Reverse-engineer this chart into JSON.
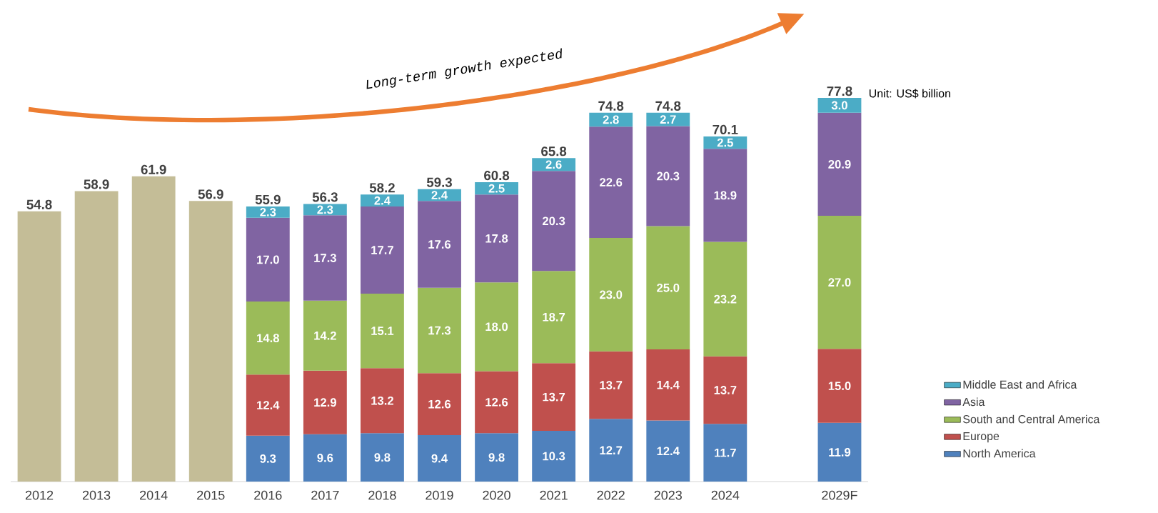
{
  "chart_data": {
    "type": "bar",
    "stacked": true,
    "legend": "bottom right",
    "categories": [
      "2012",
      "2013",
      "2014",
      "2015",
      "2016",
      "2017",
      "2018",
      "2019",
      "2020",
      "2021",
      "2022",
      "2023",
      "2024",
      null,
      "2029F"
    ],
    "series": [
      {
        "color": "#c4bd97",
        "values": [
          54.8,
          58.9,
          61.9,
          56.9,
          null,
          null,
          null,
          null,
          null,
          null,
          null,
          null,
          null,
          null,
          null
        ],
        "value_labels": [
          null,
          null,
          null,
          null,
          null,
          null,
          null,
          null,
          null,
          null,
          null,
          null,
          null,
          null,
          null
        ]
      },
      {
        "name": "North America",
        "color": "#4f81bd",
        "values": [
          null,
          null,
          null,
          null,
          9.3,
          9.6,
          9.8,
          9.4,
          9.8,
          10.3,
          12.7,
          12.4,
          11.7,
          null,
          11.9
        ],
        "value_labels": [
          null,
          null,
          null,
          null,
          "9.3",
          "9.6",
          "9.8",
          "9.4",
          "9.8",
          "10.3",
          "12.7",
          "12.4",
          "11.7",
          null,
          "11.9"
        ]
      },
      {
        "name": "Europe",
        "color": "#c0504d",
        "values": [
          null,
          null,
          null,
          null,
          12.4,
          12.9,
          13.2,
          12.6,
          12.6,
          13.7,
          13.7,
          14.4,
          13.7,
          null,
          15.0
        ],
        "value_labels": [
          null,
          null,
          null,
          null,
          "12.4",
          "12.9",
          "13.2",
          "12.6",
          "12.6",
          "13.7",
          "13.7",
          "14.4",
          "13.7",
          null,
          "15.0"
        ]
      },
      {
        "name": "South and Central America",
        "color": "#9bbb59",
        "values": [
          null,
          null,
          null,
          null,
          14.8,
          14.2,
          15.1,
          17.3,
          18.0,
          18.7,
          23.0,
          25.0,
          23.2,
          null,
          27.0
        ],
        "value_labels": [
          null,
          null,
          null,
          null,
          "14.8",
          "14.2",
          "15.1",
          "17.3",
          "18.0",
          "18.7",
          "23.0",
          "25.0",
          "23.2",
          null,
          "27.0"
        ]
      },
      {
        "name": "Asia",
        "color": "#8064a2",
        "values": [
          null,
          null,
          null,
          null,
          17.0,
          17.3,
          17.7,
          17.6,
          17.8,
          20.3,
          22.6,
          20.3,
          18.9,
          null,
          20.9
        ],
        "value_labels": [
          null,
          null,
          null,
          null,
          "17.0",
          "17.3",
          "17.7",
          "17.6",
          "17.8",
          "20.3",
          "22.6",
          "20.3",
          "18.9",
          null,
          "20.9"
        ]
      },
      {
        "name": "Middle East and Africa",
        "color": "#4bacc6",
        "values": [
          null,
          null,
          null,
          null,
          2.3,
          2.3,
          2.4,
          2.4,
          2.5,
          2.6,
          2.8,
          2.7,
          2.5,
          null,
          3.0
        ],
        "value_labels": [
          null,
          null,
          null,
          null,
          "2.3",
          "2.3",
          "2.4",
          "2.4",
          "2.5",
          "2.6",
          "2.8",
          "2.7",
          "2.5",
          null,
          "3.0"
        ]
      }
    ],
    "totals": [
      "54.8",
      "58.9",
      "61.9",
      "56.9",
      "55.9",
      "56.3",
      "58.2",
      "59.3",
      "60.8",
      "65.8",
      "74.8",
      "74.8",
      "70.1",
      null,
      "77.8"
    ],
    "annotations": [
      "Long-term growth expected",
      "Unit: US$ billion"
    ]
  }
}
